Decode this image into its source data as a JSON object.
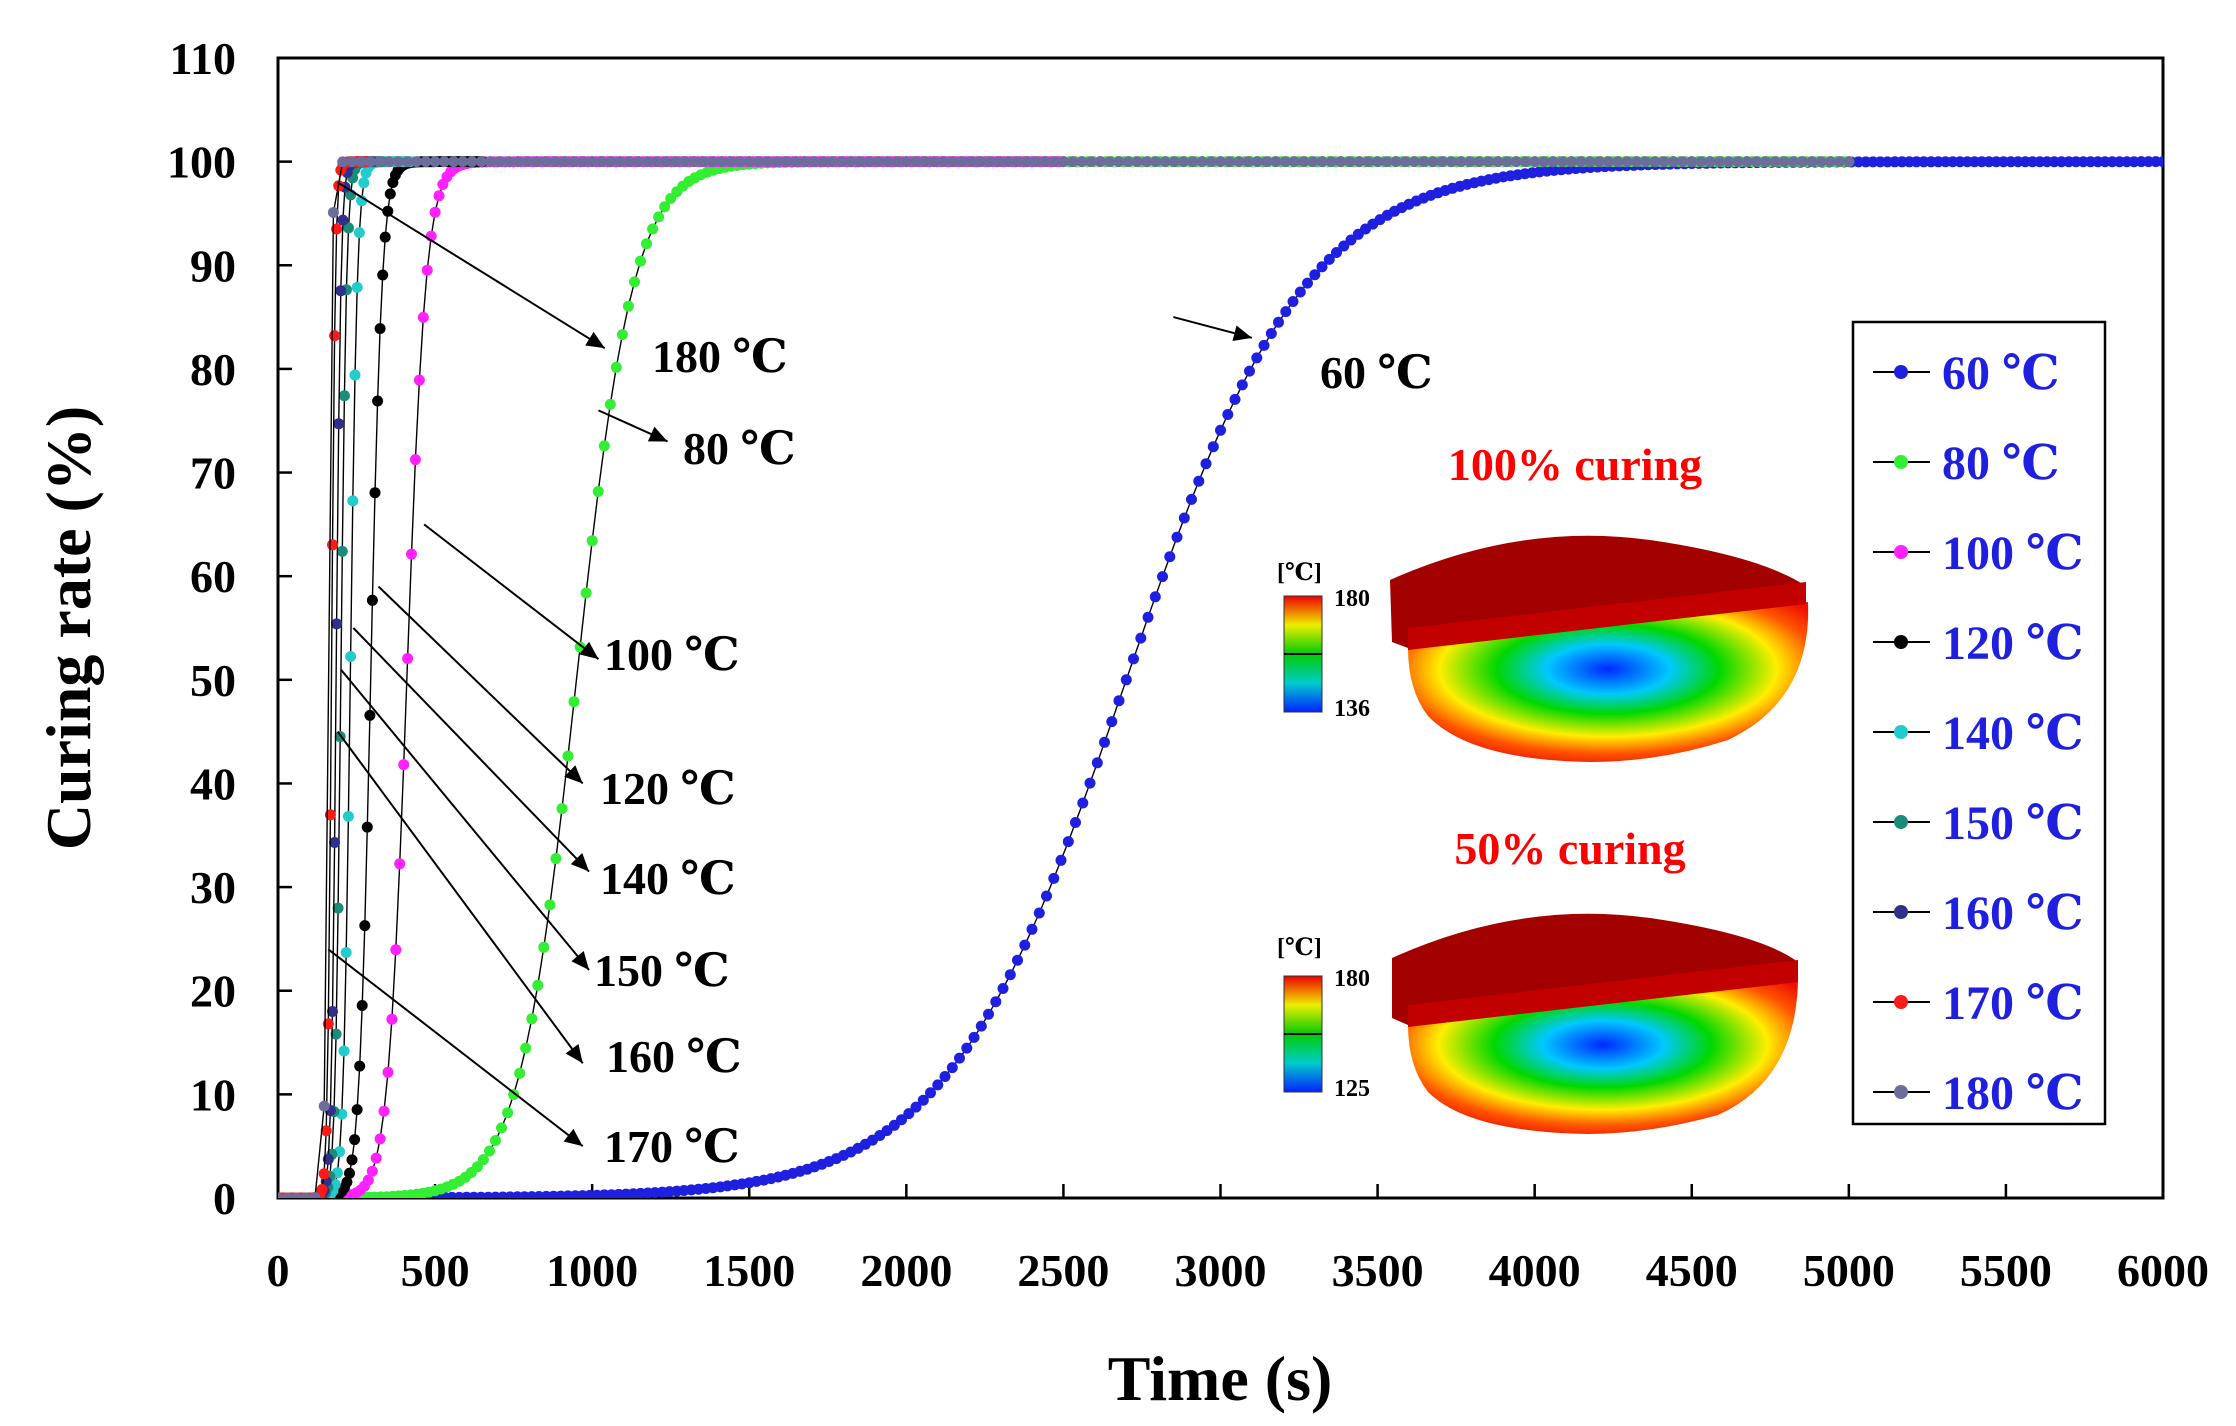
{
  "chart_data": {
    "type": "scatter",
    "xlabel": "Time (s)",
    "ylabel": "Curing rate (%)",
    "xlim": [
      0,
      6000
    ],
    "ylim": [
      0,
      110
    ],
    "xticks": [
      "0",
      "500",
      "1000",
      "1500",
      "2000",
      "2500",
      "3000",
      "3500",
      "4000",
      "4500",
      "5000",
      "5500",
      "6000"
    ],
    "yticks": [
      "0",
      "10",
      "20",
      "30",
      "40",
      "50",
      "60",
      "70",
      "80",
      "90",
      "100",
      "110"
    ],
    "grid": false,
    "legend_position": "right",
    "series": [
      {
        "name": "60 ℃",
        "color": "#1f1fe0",
        "marker": "circle",
        "t0": 100,
        "t50": 2700,
        "k": 0.0035,
        "tmax": 6000,
        "n": 260
      },
      {
        "name": "80 ℃",
        "color": "#33ee33",
        "marker": "circle",
        "t0": 100,
        "t50": 950,
        "k": 0.011,
        "tmax": 5000,
        "n": 260
      },
      {
        "name": "100 ℃",
        "color": "#ff22ff",
        "marker": "circle",
        "t0": 100,
        "t50": 410,
        "k": 0.033,
        "tmax": 2500,
        "n": 200
      },
      {
        "name": "120 ℃",
        "color": "#000000",
        "marker": "circle",
        "t0": 100,
        "t50": 295,
        "k": 0.055,
        "tmax": 650,
        "n": 80
      },
      {
        "name": "140 ℃",
        "color": "#22cccc",
        "marker": "circle",
        "t0": 100,
        "t50": 230,
        "k": 0.09,
        "tmax": 420,
        "n": 60
      },
      {
        "name": "150 ℃",
        "color": "#1a8c78",
        "marker": "circle",
        "t0": 100,
        "t50": 200,
        "k": 0.11,
        "tmax": 330,
        "n": 50
      },
      {
        "name": "160 ℃",
        "color": "#30308c",
        "marker": "circle",
        "t0": 100,
        "t50": 185,
        "k": 0.13,
        "tmax": 300,
        "n": 45
      },
      {
        "name": "170 ℃",
        "color": "#ff1a1a",
        "marker": "circle",
        "t0": 100,
        "t50": 170,
        "k": 0.16,
        "tmax": 280,
        "n": 42
      },
      {
        "name": "180 ℃",
        "color": "#6d6d9c",
        "marker": "circle",
        "t0": 0,
        "t50": 160,
        "k": 0.18,
        "tmax": 5000,
        "n": 170
      }
    ],
    "annotations": [
      {
        "text": "180 ℃",
        "from": [
          190,
          98
        ],
        "to": [
          1040,
          82
        ]
      },
      {
        "text": "80 ℃",
        "from": [
          1020,
          76
        ],
        "to": [
          1240,
          73
        ]
      },
      {
        "text": "100 ℃",
        "from": [
          465,
          65
        ],
        "to": [
          1020,
          52
        ]
      },
      {
        "text": "120 ℃",
        "from": [
          320,
          59
        ],
        "to": [
          970,
          40
        ]
      },
      {
        "text": "140 ℃",
        "from": [
          240,
          55
        ],
        "to": [
          990,
          31.5
        ]
      },
      {
        "text": "150 ℃",
        "from": [
          200,
          51
        ],
        "to": [
          990,
          22
        ]
      },
      {
        "text": "160 ℃",
        "from": [
          190,
          45
        ],
        "to": [
          970,
          13
        ]
      },
      {
        "text": "170 ℃",
        "from": [
          160,
          24
        ],
        "to": [
          970,
          5
        ]
      },
      {
        "text": "60 ℃",
        "from": [
          2850,
          85
        ],
        "to": [
          3100,
          83
        ]
      }
    ]
  },
  "labels": {
    "anno_180": "180 ℃",
    "anno_80": "80 ℃",
    "anno_100": "100 ℃",
    "anno_120": "120 ℃",
    "anno_140": "140 ℃",
    "anno_150": "150 ℃",
    "anno_160": "160 ℃",
    "anno_170": "170 ℃",
    "anno_60": "60 ℃"
  },
  "insets": {
    "top": {
      "title": "100% curing",
      "unit": "[℃]",
      "max": "180",
      "min": "136"
    },
    "bottom": {
      "title": "50% curing",
      "unit": "[℃]",
      "max": "180",
      "min": "125"
    },
    "title_color": "#ff0000"
  },
  "legend_text_color": "#1f1fe0"
}
